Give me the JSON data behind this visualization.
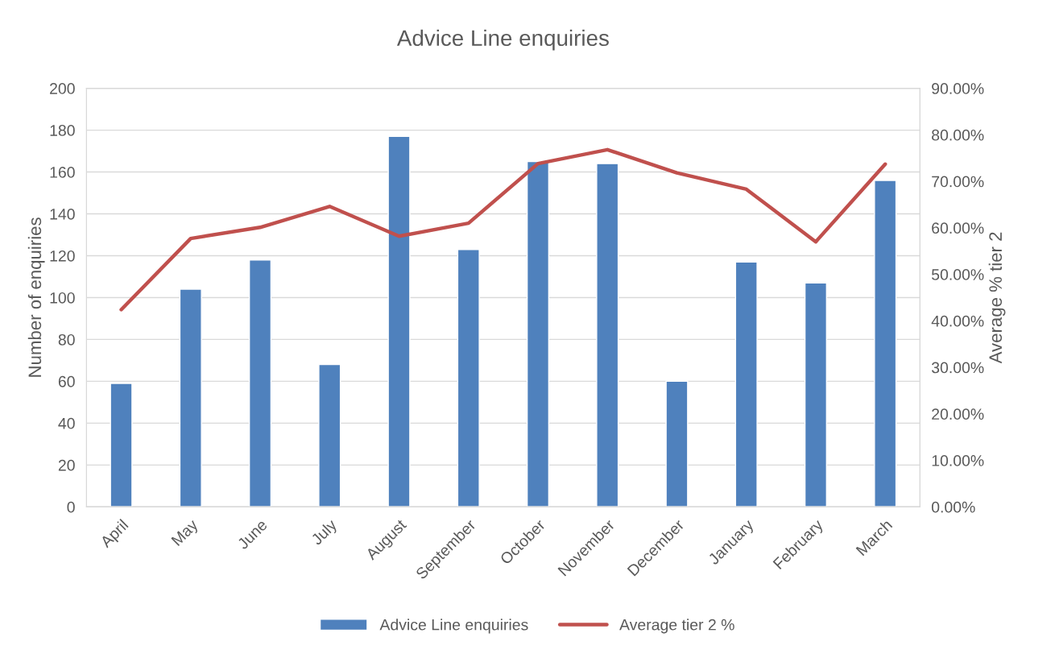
{
  "chart_data": {
    "type": "bar",
    "title": "Advice Line enquiries",
    "ylabel": "Number of enquiries",
    "y2label": "Average % tier 2",
    "categories": [
      "April",
      "May",
      "June",
      "July",
      "August",
      "September",
      "October",
      "November",
      "December",
      "January",
      "February",
      "March"
    ],
    "series": [
      {
        "name": "Advice Line enquiries",
        "color": "#4f81bd",
        "values": [
          59,
          104,
          118,
          68,
          177,
          123,
          165,
          164,
          60,
          117,
          107,
          156
        ]
      },
      {
        "name": "Average tier 2 %",
        "type": "line",
        "axis": "y2",
        "color": "#c0504d",
        "marker": "none",
        "line_style": "solid",
        "values": [
          42.4,
          57.7,
          60.1,
          64.6,
          58.2,
          61.0,
          73.8,
          76.8,
          71.8,
          68.3,
          57.0,
          73.7
        ]
      }
    ],
    "ylim": [
      0,
      200
    ],
    "yticks": [
      0,
      20,
      40,
      60,
      80,
      100,
      120,
      140,
      160,
      180,
      200
    ],
    "y2lim": [
      0,
      90
    ],
    "y2ticks": [
      {
        "value": 0,
        "label": "0.00%"
      },
      {
        "value": 10,
        "label": "10.00%"
      },
      {
        "value": 20,
        "label": "20.00%"
      },
      {
        "value": 30,
        "label": "30.00%"
      },
      {
        "value": 40,
        "label": "40.00%"
      },
      {
        "value": 50,
        "label": "50.00%"
      },
      {
        "value": 60,
        "label": "60.00%"
      },
      {
        "value": 70,
        "label": "70.00%"
      },
      {
        "value": 80,
        "label": "80.00%"
      },
      {
        "value": 90,
        "label": "90.00%"
      }
    ],
    "grid": "y",
    "legend": "bottom"
  }
}
